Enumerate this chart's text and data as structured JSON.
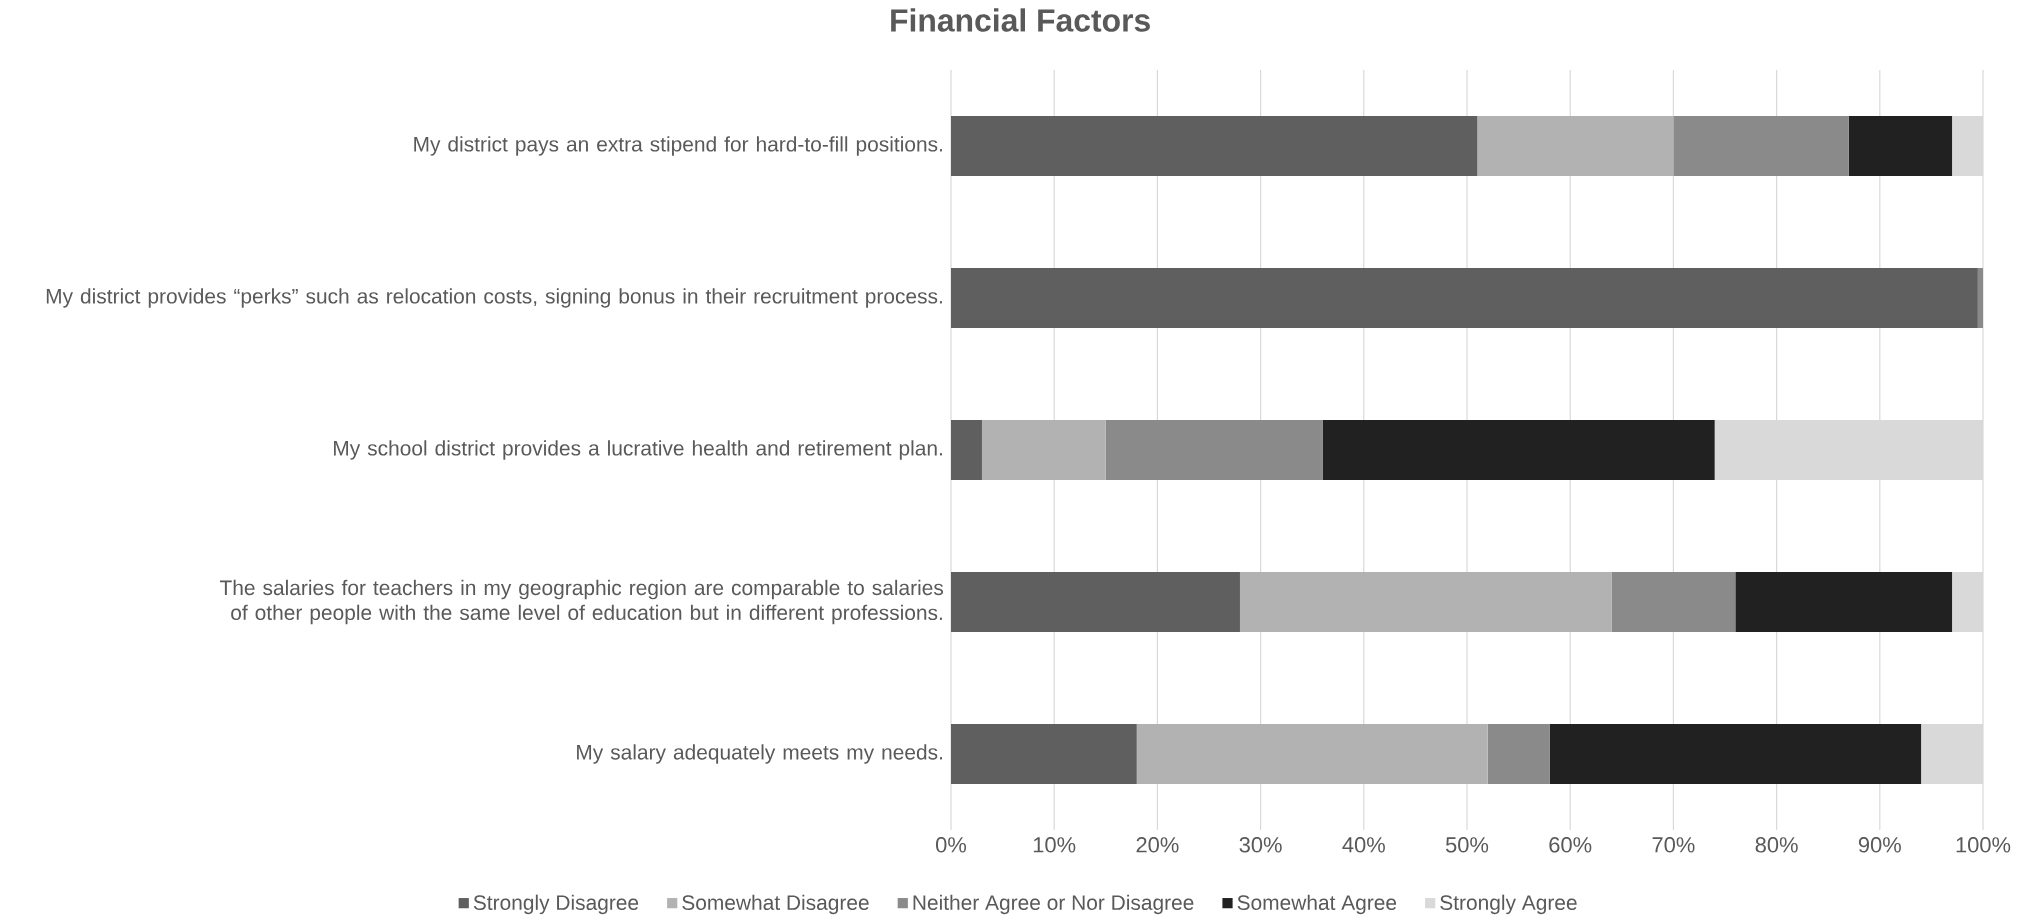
{
  "chart_data": {
    "type": "bar",
    "orientation": "horizontal",
    "stacked": true,
    "title": "Financial Factors",
    "categories": [
      "My district pays an extra stipend for hard-to-fill positions.",
      "My district provides “perks” such as relocation costs, signing bonus in their recruitment process.",
      "My school district provides a lucrative health and retirement plan.",
      "The salaries for teachers in my geographic region are comparable to salaries of other people with the same level of education but in different professions.",
      "My salary adequately meets my needs."
    ],
    "series": [
      {
        "name": "Strongly Disagree",
        "color": "#5f5f5f",
        "values": [
          51,
          99.5,
          3,
          28,
          18
        ]
      },
      {
        "name": "Somewhat Disagree",
        "color": "#b2b2b2",
        "values": [
          19,
          0,
          12,
          36,
          34
        ]
      },
      {
        "name": "Neither Agree or Nor Disagree",
        "color": "#8a8a8a",
        "values": [
          17,
          0.5,
          21,
          12,
          6
        ]
      },
      {
        "name": "Somewhat Agree",
        "color": "#212121",
        "values": [
          10,
          0,
          38,
          21,
          36
        ]
      },
      {
        "name": "Strongly Agree",
        "color": "#d9d9d9",
        "values": [
          3,
          0,
          26,
          3,
          6
        ]
      }
    ],
    "xlim": [
      0,
      100
    ],
    "xticks": [
      {
        "value": 0,
        "label": "0%"
      },
      {
        "value": 10,
        "label": "10%"
      },
      {
        "value": 20,
        "label": "20%"
      },
      {
        "value": 30,
        "label": "30%"
      },
      {
        "value": 40,
        "label": "40%"
      },
      {
        "value": 50,
        "label": "50%"
      },
      {
        "value": 60,
        "label": "60%"
      },
      {
        "value": 70,
        "label": "70%"
      },
      {
        "value": 80,
        "label": "80%"
      },
      {
        "value": 90,
        "label": "90%"
      },
      {
        "value": 100,
        "label": "100%"
      }
    ],
    "grid": "x",
    "legend": "bottom"
  }
}
